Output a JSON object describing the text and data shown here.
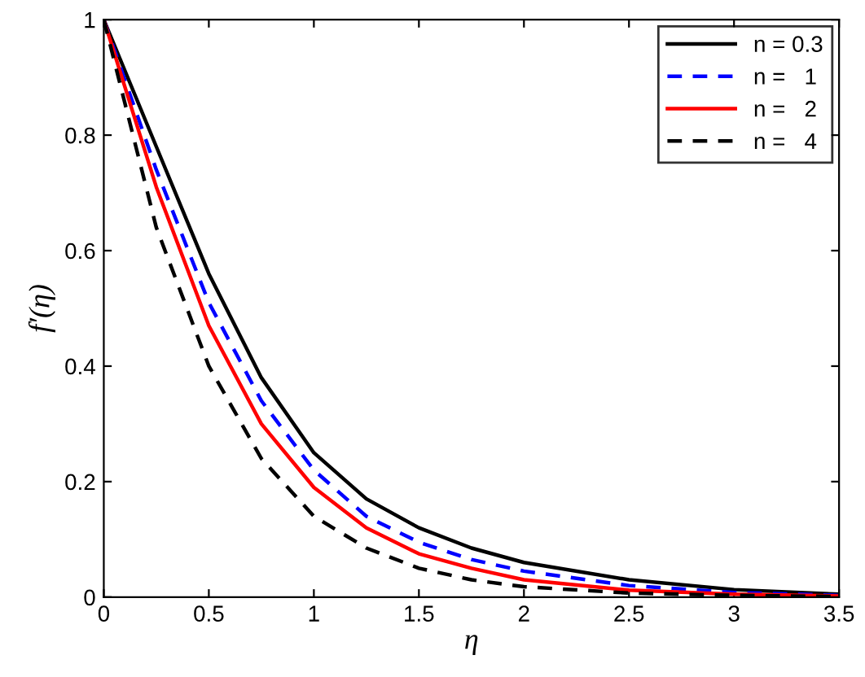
{
  "chart_data": {
    "type": "line",
    "xlabel": "η",
    "ylabel": "f′(η)",
    "x": [
      0,
      0.25,
      0.5,
      0.75,
      1,
      1.25,
      1.5,
      1.75,
      2,
      2.5,
      3,
      3.5
    ],
    "xlim": [
      0,
      3.5
    ],
    "xticks": [
      0,
      0.5,
      1,
      1.5,
      2,
      2.5,
      3,
      3.5
    ],
    "ylim": [
      0,
      1
    ],
    "yticks": [
      0,
      0.2,
      0.4,
      0.6,
      0.8,
      1
    ],
    "grid": false,
    "legend": "top right",
    "series": [
      {
        "name": "n = 0.3",
        "color": "#000000",
        "line_style": "solid",
        "values": [
          1,
          0.78,
          0.56,
          0.38,
          0.25,
          0.17,
          0.12,
          0.085,
          0.06,
          0.03,
          0.013,
          0.005
        ]
      },
      {
        "name": "n =   1",
        "color": "#0000ff",
        "line_style": "dashed",
        "values": [
          1,
          0.74,
          0.51,
          0.34,
          0.22,
          0.14,
          0.095,
          0.065,
          0.045,
          0.02,
          0.008,
          0.003
        ]
      },
      {
        "name": "n =   2",
        "color": "#ff0000",
        "line_style": "solid",
        "values": [
          1,
          0.71,
          0.47,
          0.3,
          0.19,
          0.12,
          0.075,
          0.05,
          0.03,
          0.012,
          0.005,
          0.002
        ]
      },
      {
        "name": "n =   4",
        "color": "#000000",
        "line_style": "dashed",
        "values": [
          1,
          0.64,
          0.4,
          0.24,
          0.14,
          0.085,
          0.05,
          0.03,
          0.018,
          0.007,
          0.003,
          0.001
        ]
      }
    ]
  }
}
